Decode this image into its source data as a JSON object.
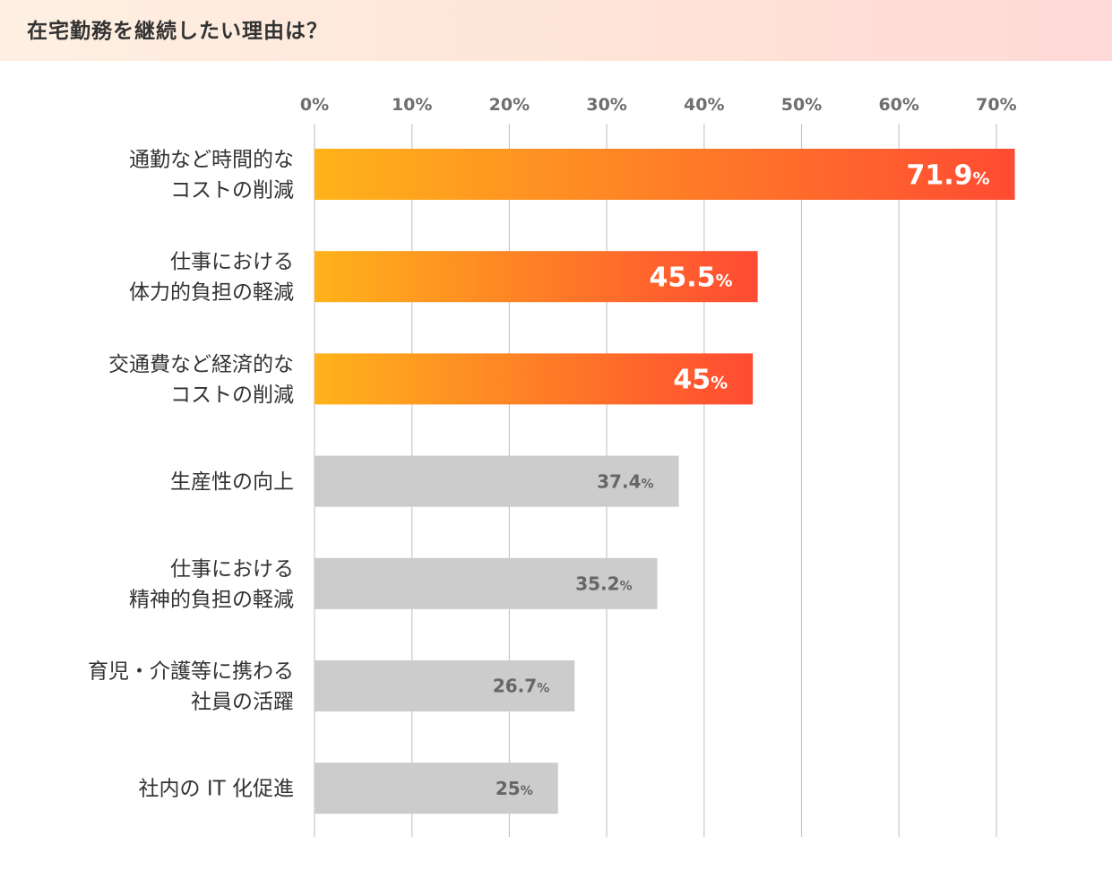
{
  "title": "在宅勤務を継続したい理由は？",
  "chart_data": {
    "type": "bar",
    "orientation": "horizontal",
    "categories": [
      [
        "通勤など時間的な",
        "コストの削減"
      ],
      [
        "仕事における",
        "体力的負担の軽減"
      ],
      [
        "交通費など経済的な",
        "コストの削減"
      ],
      [
        "生産性の向上"
      ],
      [
        "仕事における",
        "精神的負担の軽減"
      ],
      [
        "育児・介護等に携わる",
        "社員の活躍"
      ],
      [
        "社内の IT 化促進"
      ]
    ],
    "values": [
      71.9,
      45.5,
      45,
      37.4,
      35.2,
      26.7,
      25
    ],
    "value_labels": [
      "71.9",
      "45.5",
      "45",
      "37.4",
      "35.2",
      "26.7",
      "25"
    ],
    "value_unit": "%",
    "highlighted": [
      true,
      true,
      true,
      false,
      false,
      false,
      false
    ],
    "x_ticks": [
      "0%",
      "10%",
      "20%",
      "30%",
      "40%",
      "50%",
      "60%",
      "70%"
    ],
    "xlim": [
      0,
      73
    ],
    "grid": true,
    "legend": "none",
    "colors": {
      "highlight_start": "#ffb31a",
      "highlight_end": "#ff4b33",
      "neutral_bar": "#cccccc",
      "gridline": "#c8c8c8",
      "highlight_label": "#ffffff",
      "neutral_label": "#666666"
    }
  }
}
